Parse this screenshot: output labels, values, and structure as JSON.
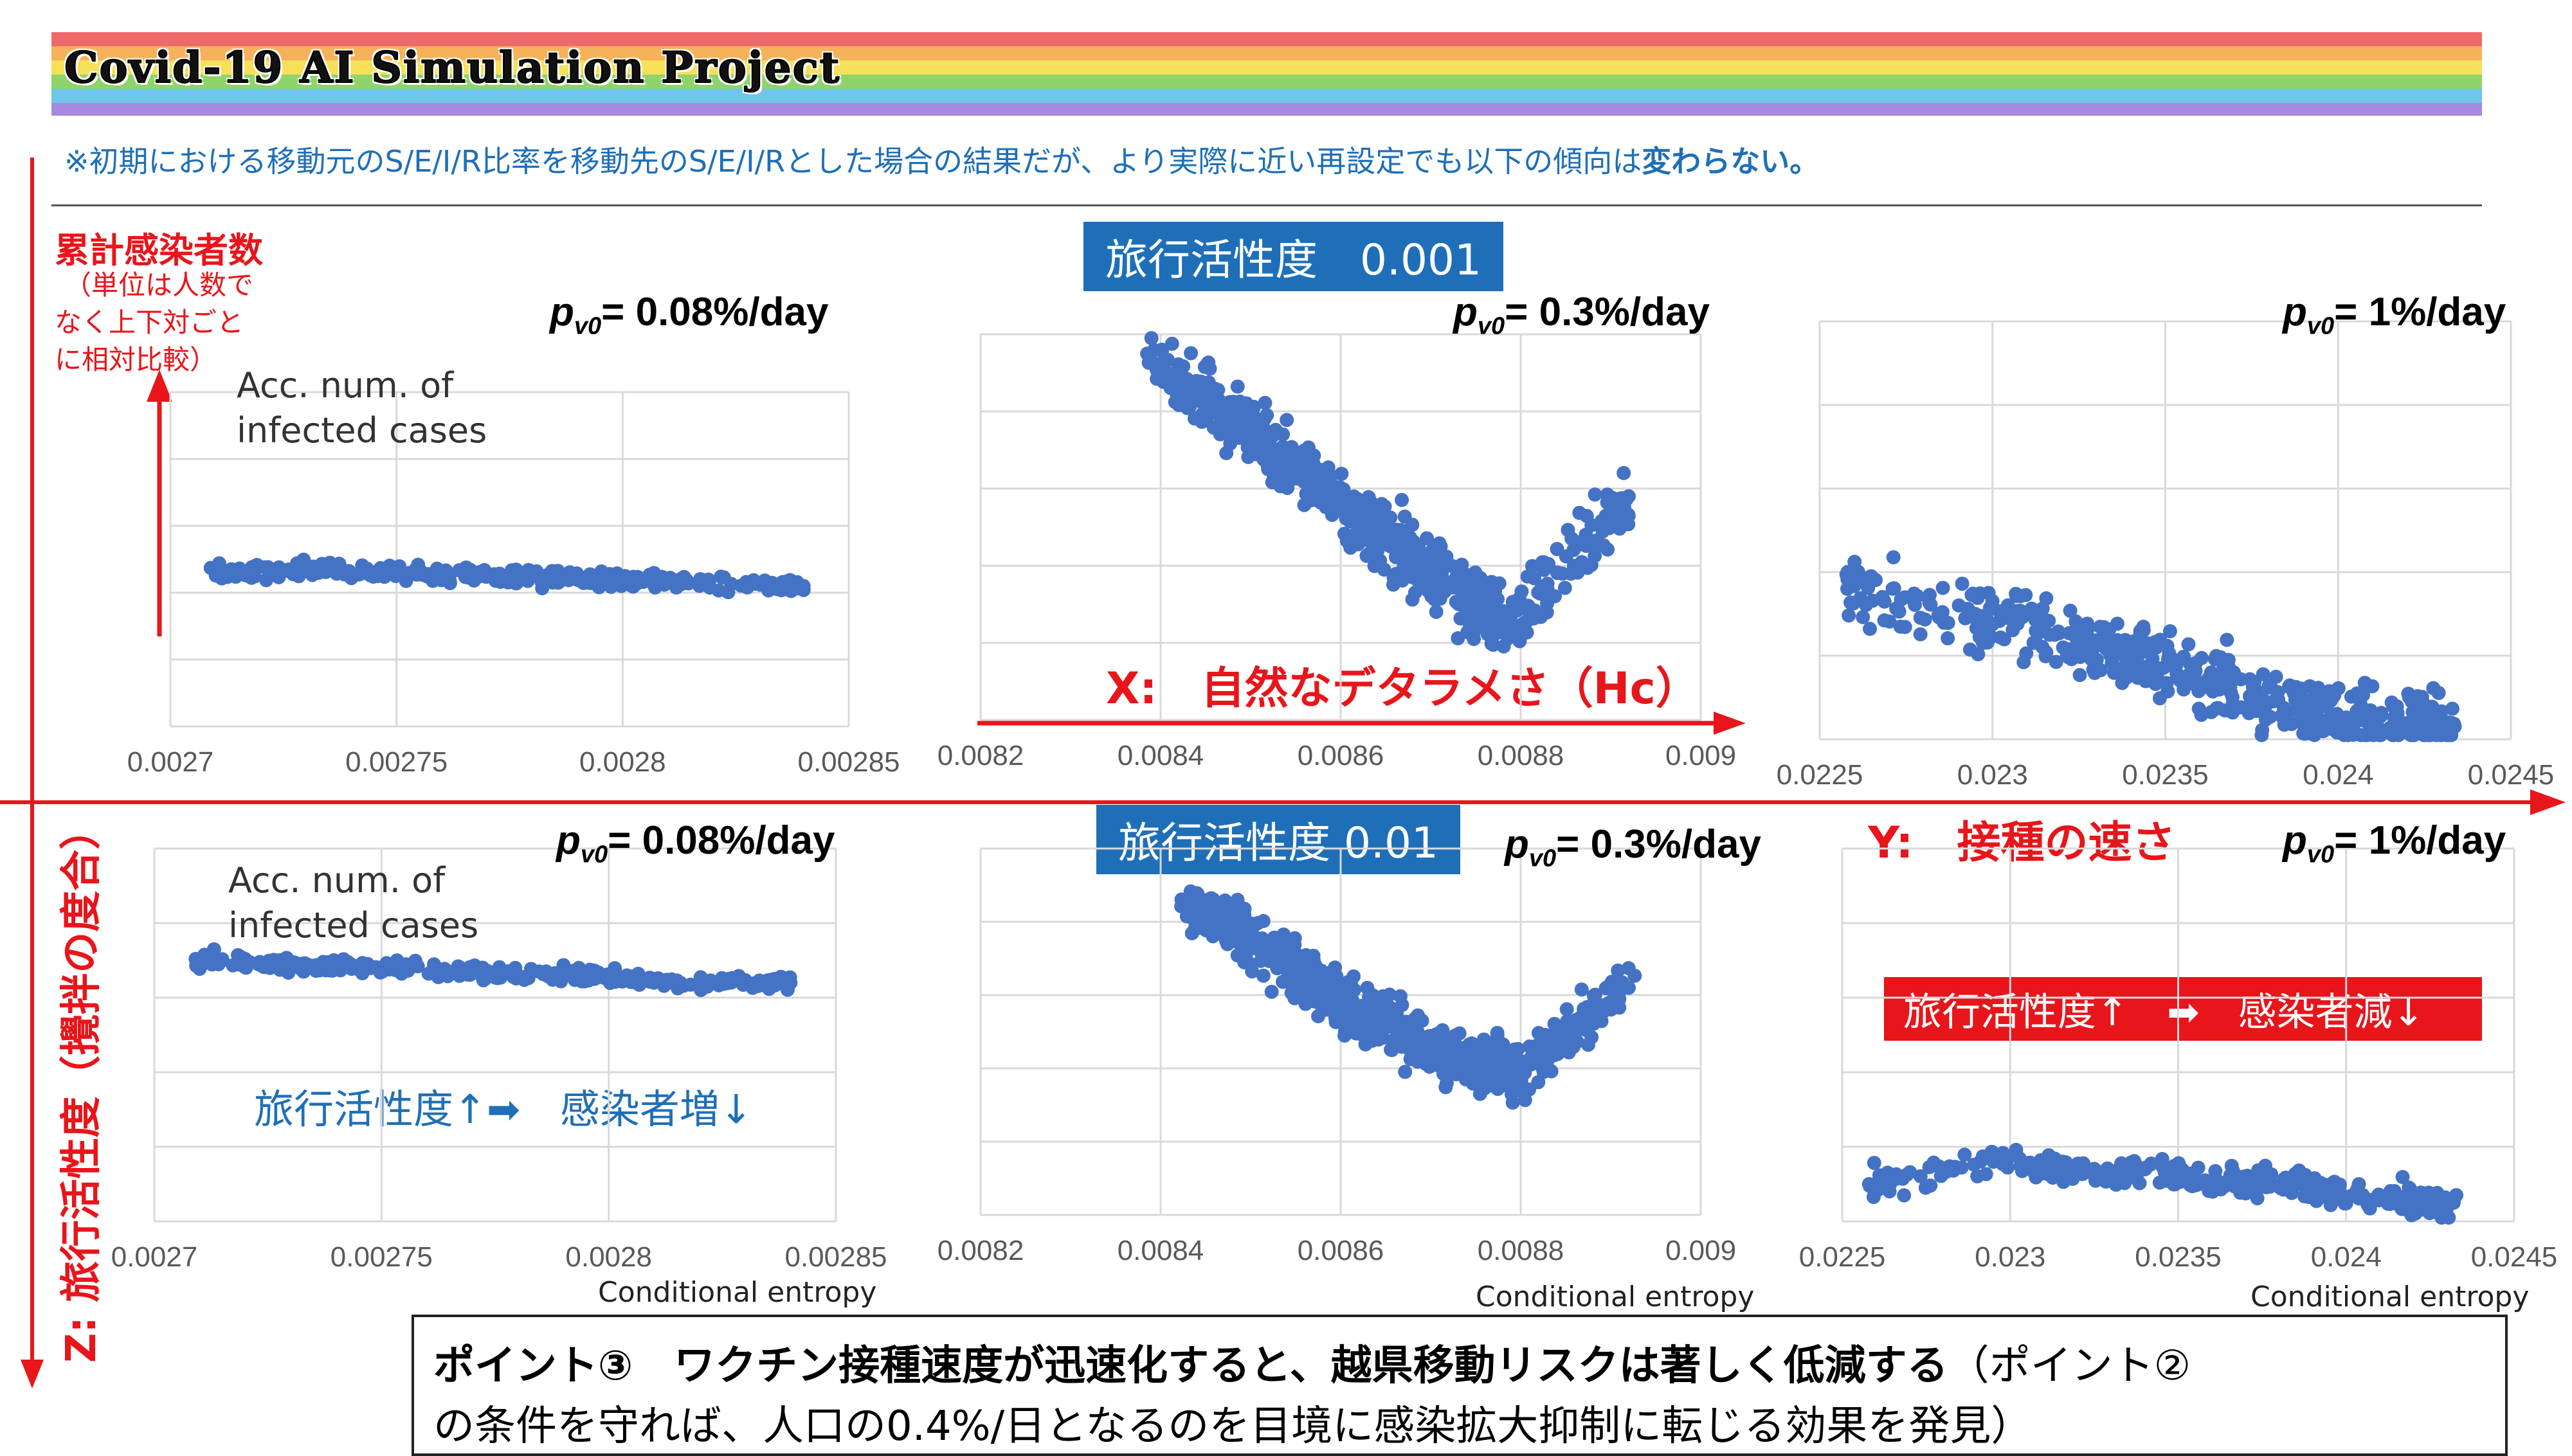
{
  "header": {
    "title": "Covid-19 AI Simulation Project",
    "note_prefix": "※初期における移動元のS/E/I/R比率を移動先のS/E/I/Rとした場合の結果だが、より実際に近い再設定でも以下の傾向は",
    "note_bold": "変わらない。"
  },
  "left_axis": {
    "title": "累計感染者数",
    "sub1": "（単位は人数で",
    "sub2": "なく上下対ごと",
    "sub3": "に相対比較）",
    "z_label": "Z: 旅行活性度（攪拌の度合）"
  },
  "axes": {
    "x_label": "X:　自然なデタラメさ（Hc）",
    "y_label": "Y:　接種の速さ",
    "ylabel_line1": "Acc. num. of",
    "ylabel_line2": "infected cases",
    "xlabel": "Conditional entropy"
  },
  "banners": {
    "top": "旅行活性度　0.001",
    "bottom": "旅行活性度 0.01",
    "red": "旅行活性度↑　➡　感染者減↓",
    "blue_note": "旅行活性度↑➡　感染者増↓"
  },
  "point": {
    "bold": "ポイント③　ワクチン接種速度が迅速化すると、越県移動リスクは著しく低減する",
    "normal": "（ポイント②",
    "line2": "の条件を守れば、人口の0.4%/日となるのを目境に感染拡大抑制に転じる効果を発見）"
  },
  "colors": {
    "marker": "#4472c4",
    "red": "#e8151b",
    "blue": "#1e6fb8"
  },
  "chart_data": [
    {
      "type": "scatter",
      "pv": "= 0.08%/day",
      "xlim": [
        0.0027,
        0.00285
      ],
      "xticks": [
        "0.0027",
        "0.00275",
        "0.0028",
        "0.00285"
      ],
      "points": [
        [
          0.00271,
          0.46
        ],
        [
          0.00273,
          0.47
        ],
        [
          0.00275,
          0.46
        ],
        [
          0.00277,
          0.45
        ],
        [
          0.00279,
          0.44
        ],
        [
          0.00281,
          0.43
        ],
        [
          0.00284,
          0.42
        ]
      ],
      "spread": 0.025
    },
    {
      "type": "scatter",
      "pv": "= 0.3%/day",
      "xlim": [
        0.0082,
        0.009
      ],
      "xticks": [
        "0.0082",
        "0.0084",
        "0.0086",
        "0.0088",
        "0.009"
      ],
      "points": [
        [
          0.00839,
          0.93
        ],
        [
          0.00848,
          0.78
        ],
        [
          0.00856,
          0.64
        ],
        [
          0.00862,
          0.52
        ],
        [
          0.00868,
          0.42
        ],
        [
          0.00874,
          0.32
        ],
        [
          0.00879,
          0.25
        ],
        [
          0.00892,
          0.58
        ]
      ],
      "spread": 0.09
    },
    {
      "type": "scatter",
      "pv": "= 1%/day",
      "xlim": [
        0.0225,
        0.0245
      ],
      "xticks": [
        "0.0225",
        "0.023",
        "0.0235",
        "0.024",
        "0.0245"
      ],
      "points": [
        [
          0.02258,
          0.36
        ],
        [
          0.02295,
          0.3
        ],
        [
          0.02318,
          0.25
        ],
        [
          0.02338,
          0.2
        ],
        [
          0.02358,
          0.15
        ],
        [
          0.02378,
          0.1
        ],
        [
          0.02398,
          0.06
        ],
        [
          0.02418,
          0.03
        ],
        [
          0.02432,
          0.04
        ]
      ],
      "spread": 0.09
    },
    {
      "type": "scatter",
      "pv": "= 0.08%/day",
      "xlim": [
        0.0027,
        0.00285
      ],
      "xticks": [
        "0.0027",
        "0.00275",
        "0.0028",
        "0.00285"
      ],
      "points": [
        [
          0.00271,
          0.7
        ],
        [
          0.00273,
          0.69
        ],
        [
          0.00275,
          0.68
        ],
        [
          0.00277,
          0.67
        ],
        [
          0.00279,
          0.66
        ],
        [
          0.00281,
          0.65
        ],
        [
          0.00284,
          0.64
        ]
      ],
      "spread": 0.022
    },
    {
      "type": "scatter",
      "pv": "= 0.3%/day",
      "xlim": [
        0.0082,
        0.009
      ],
      "xticks": [
        "0.0082",
        "0.0084",
        "0.0086",
        "0.0088",
        "0.009"
      ],
      "points": [
        [
          0.00843,
          0.86
        ],
        [
          0.0085,
          0.76
        ],
        [
          0.00856,
          0.66
        ],
        [
          0.00862,
          0.56
        ],
        [
          0.00868,
          0.48
        ],
        [
          0.00874,
          0.42
        ],
        [
          0.0088,
          0.4
        ],
        [
          0.00892,
          0.62
        ]
      ],
      "spread": 0.08
    },
    {
      "type": "scatter",
      "pv": "= 1%/day",
      "xlim": [
        0.0225,
        0.0245
      ],
      "xticks": [
        "0.0225",
        "0.023",
        "0.0235",
        "0.024",
        "0.0245"
      ],
      "points": [
        [
          0.02258,
          0.1
        ],
        [
          0.02295,
          0.16
        ],
        [
          0.02318,
          0.14
        ],
        [
          0.02338,
          0.13
        ],
        [
          0.02358,
          0.11
        ],
        [
          0.02378,
          0.1
        ],
        [
          0.02398,
          0.08
        ],
        [
          0.02418,
          0.06
        ],
        [
          0.02432,
          0.05
        ]
      ],
      "spread": 0.04
    }
  ]
}
